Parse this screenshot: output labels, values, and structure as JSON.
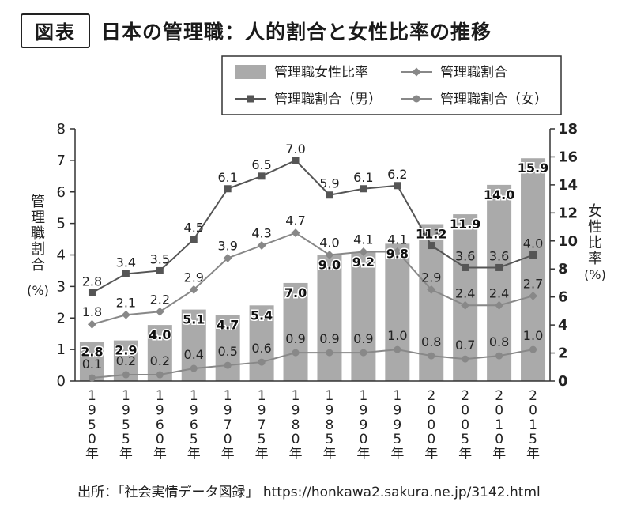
{
  "header": {
    "tag": "図表",
    "title": "日本の管理職：人的割合と女性比率の推移"
  },
  "source": "出所：「社会実情データ図録」 https://honkawa2.sakura.ne.jp/3142.html",
  "colors": {
    "bar": "#aaaaaa",
    "line_all": "#888888",
    "line_male": "#555555",
    "line_female": "#888888"
  },
  "chart_data": {
    "type": "bar",
    "title": "日本の管理職：人的割合と女性比率の推移",
    "categories": [
      "1950年",
      "1955年",
      "1960年",
      "1965年",
      "1970年",
      "1975年",
      "1980年",
      "1985年",
      "1990年",
      "1995年",
      "2000年",
      "2005年",
      "2010年",
      "2015年"
    ],
    "ylabel": "管理職割合 (%)",
    "y2label": "女性比率 (%)",
    "ylim": [
      0,
      8
    ],
    "y2lim": [
      0,
      18
    ],
    "yticks": [
      0,
      1,
      2,
      3,
      4,
      5,
      6,
      7,
      8
    ],
    "y2ticks": [
      0,
      2,
      4,
      6,
      8,
      10,
      12,
      14,
      16,
      18
    ],
    "legend_position": "top-right",
    "grid": false,
    "series": [
      {
        "name": "管理職女性比率",
        "type": "bar",
        "axis": "right",
        "values": [
          2.8,
          2.9,
          4.0,
          5.1,
          4.7,
          5.4,
          7.0,
          9.0,
          9.2,
          9.8,
          11.2,
          11.9,
          14.0,
          15.9
        ],
        "labels": [
          "2.8",
          "2.9",
          "4.0",
          "5.1",
          "4.7",
          "5.4",
          "7.0",
          "9.0",
          "9.2",
          "9.8",
          "11.2",
          "11.9",
          "14.0",
          "15.9"
        ]
      },
      {
        "name": "管理職割合",
        "type": "line",
        "marker": "diamond",
        "axis": "left",
        "values": [
          1.8,
          2.1,
          2.2,
          2.9,
          3.9,
          4.3,
          4.7,
          4.0,
          4.1,
          4.1,
          2.9,
          2.4,
          2.4,
          2.7
        ],
        "labels": [
          "1.8",
          "2.1",
          "2.2",
          "2.9",
          "3.9",
          "4.3",
          "4.7",
          "4.0",
          "4.1",
          "4.1",
          "2.9",
          "2.4",
          "2.4",
          "2.7"
        ]
      },
      {
        "name": "管理職割合（男）",
        "type": "line",
        "marker": "square",
        "axis": "left",
        "values": [
          2.8,
          3.4,
          3.5,
          4.5,
          6.1,
          6.5,
          7.0,
          5.9,
          6.1,
          6.2,
          4.3,
          3.6,
          3.6,
          4.0
        ],
        "labels": [
          "2.8",
          "3.4",
          "3.5",
          "4.5",
          "6.1",
          "6.5",
          "7.0",
          "5.9",
          "6.1",
          "6.2",
          "4.3",
          "3.6",
          "3.6",
          "4.0"
        ]
      },
      {
        "name": "管理職割合（女）",
        "type": "line",
        "marker": "circle",
        "axis": "left",
        "values": [
          0.1,
          0.2,
          0.2,
          0.4,
          0.5,
          0.6,
          0.9,
          0.9,
          0.9,
          1.0,
          0.8,
          0.7,
          0.8,
          1.0
        ],
        "labels": [
          "0.1",
          "0.2",
          "0.2",
          "0.4",
          "0.5",
          "0.6",
          "0.9",
          "0.9",
          "0.9",
          "1.0",
          "0.8",
          "0.7",
          "0.8",
          "1.0"
        ]
      }
    ]
  }
}
